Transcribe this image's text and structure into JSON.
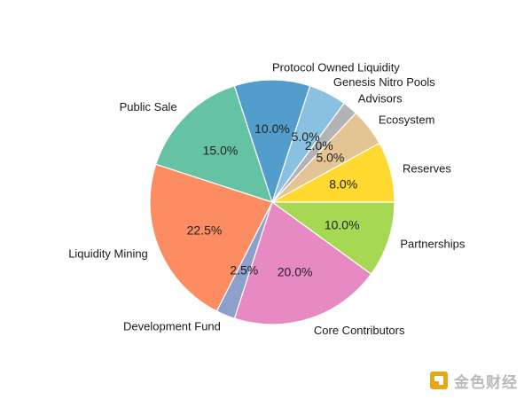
{
  "chart_data": {
    "type": "pie",
    "title": "",
    "start_angle_deg": -162,
    "direction": "clockwise",
    "slices": [
      {
        "label": "Public Sale",
        "value": 15.0,
        "pct_label": "15.0%",
        "color": "#66c2a5"
      },
      {
        "label": "Protocol Owned Liquidity",
        "value": 10.0,
        "pct_label": "10.0%",
        "color": "#529dcc"
      },
      {
        "label": "Genesis Nitro Pools",
        "value": 5.0,
        "pct_label": "5.0%",
        "color": "#8ac0e0"
      },
      {
        "label": "Advisors",
        "value": 2.0,
        "pct_label": "2.0%",
        "color": "#b3b3b3"
      },
      {
        "label": "Ecosystem",
        "value": 5.0,
        "pct_label": "5.0%",
        "color": "#e5c494"
      },
      {
        "label": "Reserves",
        "value": 8.0,
        "pct_label": "8.0%",
        "color": "#ffd92f"
      },
      {
        "label": "Partnerships",
        "value": 10.0,
        "pct_label": "10.0%",
        "color": "#a6d854"
      },
      {
        "label": "Core Contributors",
        "value": 20.0,
        "pct_label": "20.0%",
        "color": "#e78ac3"
      },
      {
        "label": "Development Fund",
        "value": 2.5,
        "pct_label": "2.5%",
        "color": "#8da0cb"
      },
      {
        "label": "Liquidity Mining",
        "value": 22.5,
        "pct_label": "22.5%",
        "color": "#fc8d62"
      }
    ]
  },
  "watermark": {
    "text": "金色财经",
    "logo_color": "#e6a817"
  }
}
